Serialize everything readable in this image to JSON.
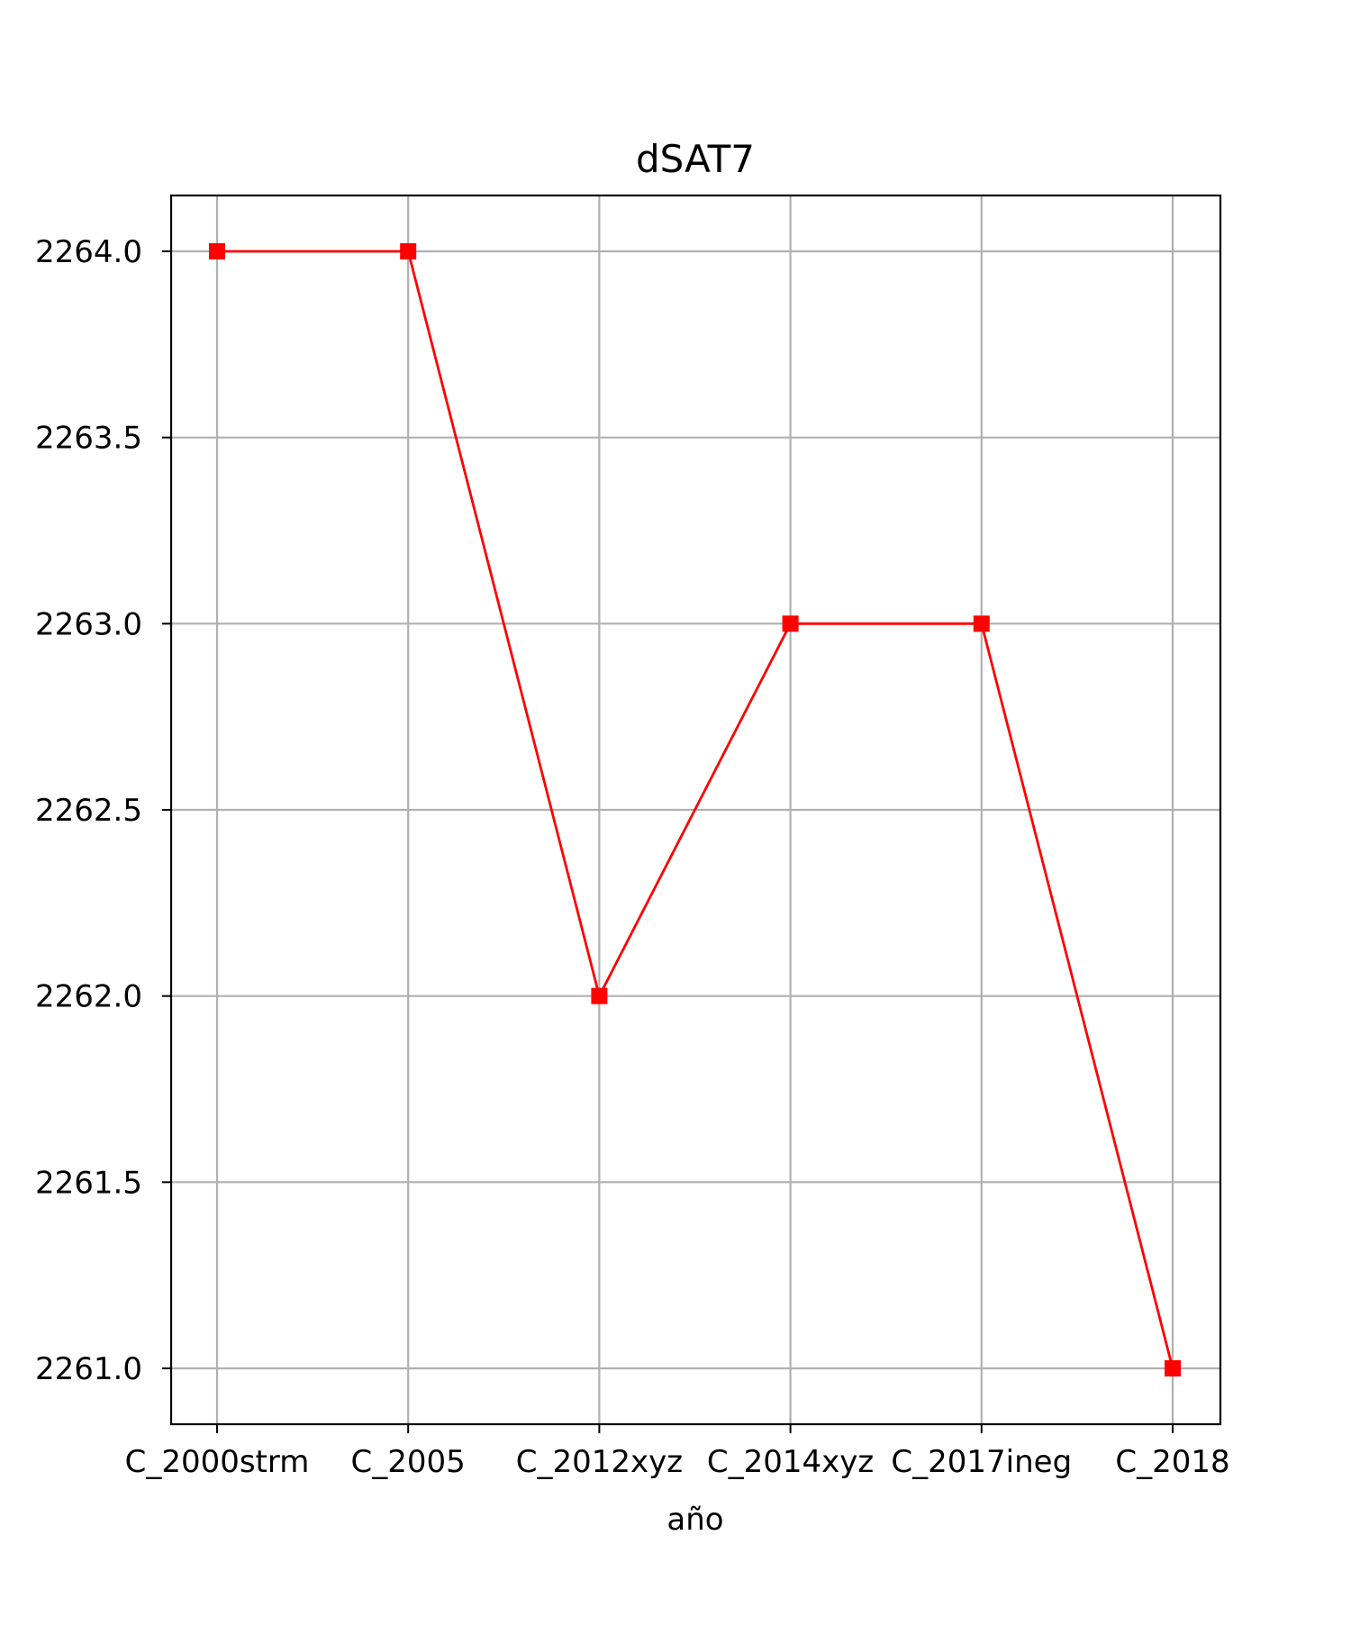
{
  "chart_data": {
    "type": "line",
    "title": "dSAT7",
    "xlabel": "año",
    "ylabel": "",
    "categories": [
      "C_2000strm",
      "C_2005",
      "C_2012xyz",
      "C_2014xyz",
      "C_2017ineg",
      "C_2018"
    ],
    "series": [
      {
        "values": [
          2264.0,
          2264.0,
          2262.0,
          2263.0,
          2263.0,
          2261.0
        ],
        "color": "#ff0000",
        "marker": "square"
      }
    ],
    "ylim": [
      2260.85,
      2264.15
    ],
    "yticks": [
      "2261.0",
      "2261.5",
      "2262.0",
      "2262.5",
      "2263.0",
      "2263.5",
      "2264.0"
    ],
    "grid": true
  }
}
